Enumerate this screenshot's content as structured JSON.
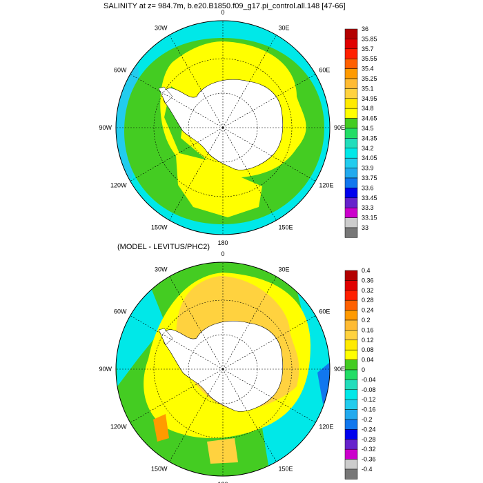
{
  "title_top": "SALINITY at z= 984.7m, b.e20.B1850.f09_g17.pi_control.all.148 [47-66]",
  "title_bottom": "(MODEL - LEVITUS/PHC2)",
  "longitude_labels": [
    "0",
    "30E",
    "60E",
    "90E",
    "120E",
    "150E",
    "180",
    "150W",
    "120W",
    "90W",
    "60W",
    "30W"
  ],
  "colorbar_top": {
    "labels": [
      "36",
      "35.85",
      "35.7",
      "35.55",
      "35.4",
      "35.25",
      "35.1",
      "34.95",
      "34.8",
      "34.65",
      "34.5",
      "34.35",
      "34.2",
      "34.05",
      "33.9",
      "33.75",
      "33.6",
      "33.45",
      "33.3",
      "33.15",
      "33"
    ],
    "colors": [
      "#b30000",
      "#e00000",
      "#ff2000",
      "#ff6000",
      "#ff9a00",
      "#ffbb33",
      "#ffd23f",
      "#ffea00",
      "#ffff00",
      "#44cc22",
      "#22dd66",
      "#22ddbb",
      "#00e8e8",
      "#22ccee",
      "#22aaee",
      "#1177ee",
      "#0000ee",
      "#6622cc",
      "#cc00cc",
      "#cccccc",
      "#777777"
    ]
  },
  "colorbar_bottom": {
    "labels": [
      "0.4",
      "0.36",
      "0.32",
      "0.28",
      "0.24",
      "0.2",
      "0.16",
      "0.12",
      "0.08",
      "0.04",
      "0",
      "-0.04",
      "-0.08",
      "-0.12",
      "-0.16",
      "-0.2",
      "-0.24",
      "-0.28",
      "-0.32",
      "-0.36",
      "-0.4"
    ],
    "colors": [
      "#b30000",
      "#e00000",
      "#ff2000",
      "#ff6000",
      "#ff9a00",
      "#ffbb33",
      "#ffd23f",
      "#ffea00",
      "#ffff00",
      "#44cc22",
      "#22dd66",
      "#22ddbb",
      "#00e8e8",
      "#22ccee",
      "#22aaee",
      "#1177ee",
      "#0000ee",
      "#6622cc",
      "#cc00cc",
      "#cccccc",
      "#777777"
    ]
  },
  "map_colors": {
    "land": "#ffffff",
    "top_dominant": "#ffff00",
    "top_green": "#44cc22",
    "top_cyan": "#00e8e8",
    "bottom_dominant": "#ffd23f",
    "bottom_yellow": "#ffff00",
    "bottom_green": "#44cc22",
    "bottom_cyan": "#00e8e8"
  }
}
